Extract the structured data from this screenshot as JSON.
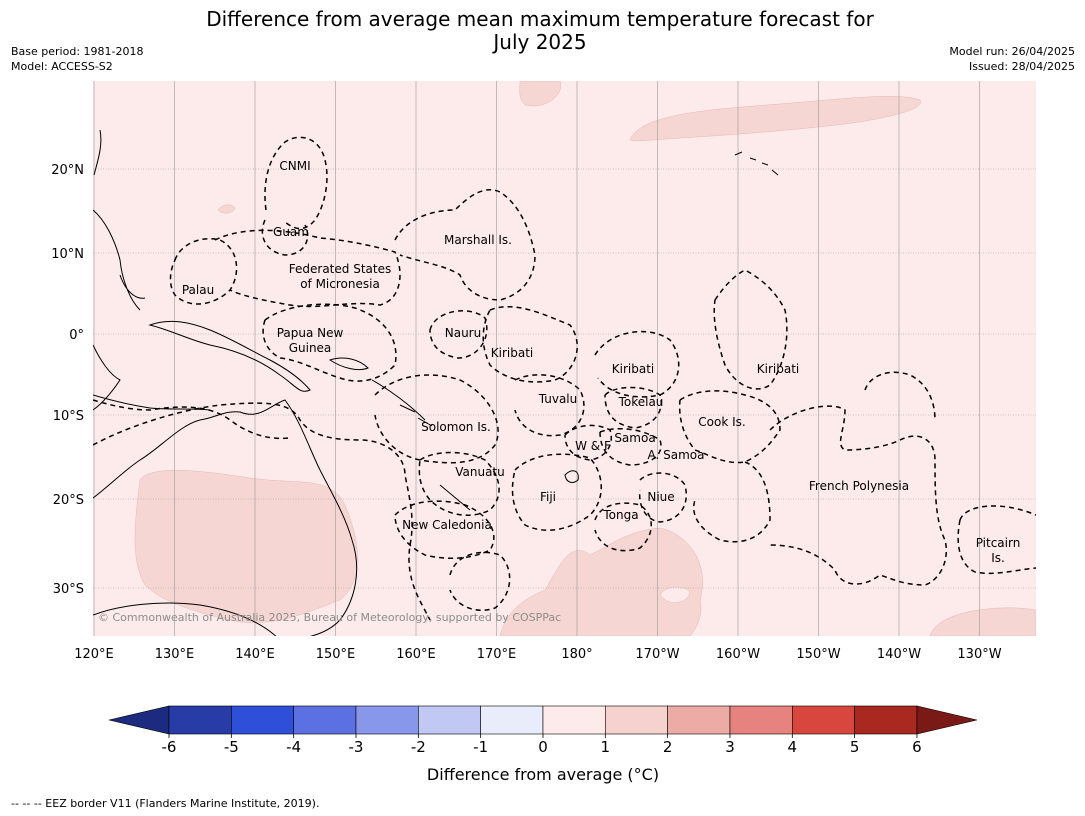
{
  "title_line1": "Difference from average mean maximum temperature forecast for",
  "title_line2": "July 2025",
  "base_period": "Base period: 1981-2018",
  "model": "Model: ACCESS-S2",
  "model_run": "Model run: 26/04/2025",
  "issued": "Issued: 28/04/2025",
  "lon_ticks": [
    "120°E",
    "130°E",
    "140°E",
    "150°E",
    "160°E",
    "170°E",
    "180°",
    "170°W",
    "160°W",
    "150°W",
    "140°W",
    "130°W"
  ],
  "lat_ticks": [
    "20°N",
    "10°N",
    "0°",
    "10°S",
    "20°S",
    "30°S"
  ],
  "region_labels": {
    "cnmi": "CNMI",
    "guam": "Guam",
    "marshall": "Marshall Is.",
    "fsm1": "Federated States",
    "fsm2": "of Micronesia",
    "palau": "Palau",
    "png1": "Papua New",
    "png2": "Guinea",
    "nauru": "Nauru",
    "kiribati_w": "Kiribati",
    "kiribati_c": "Kiribati",
    "kiribati_e": "Kiribati",
    "tuvalu": "Tuvalu",
    "tokelau": "Tokelau",
    "solomon": "Solomon Is.",
    "wf": "W & F",
    "samoa": "Samoa",
    "asamoa": "A. Samoa",
    "cook": "Cook Is.",
    "vanuatu": "Vanuatu",
    "fiji": "Fiji",
    "niue": "Niue",
    "tonga": "Tonga",
    "frpoly": "French Polynesia",
    "newcal": "New Caledonia",
    "pitcairn1": "Pitcairn",
    "pitcairn2": "Is."
  },
  "copyright": "© Commonwealth of Australia 2025, Bureau of Meteorology, supported by COSPPac",
  "colorbar": {
    "ticks": [
      "-6",
      "-5",
      "-4",
      "-3",
      "-2",
      "-1",
      "0",
      "1",
      "2",
      "3",
      "4",
      "5",
      "6"
    ],
    "title": "Difference from average (°C)",
    "colors": [
      "#283ca8",
      "#2f4fd9",
      "#5a70e3",
      "#8797ea",
      "#c0c8f3",
      "#e8ecfb",
      "#fcebea",
      "#f6d2cf",
      "#edaba6",
      "#e6837e",
      "#d9463d",
      "#a9281f"
    ],
    "under_color": "#1c2a80",
    "over_color": "#7a1a16"
  },
  "footnote": "--  --  -- EEZ border V11 (Flanders Marine Institute, 2019)."
}
